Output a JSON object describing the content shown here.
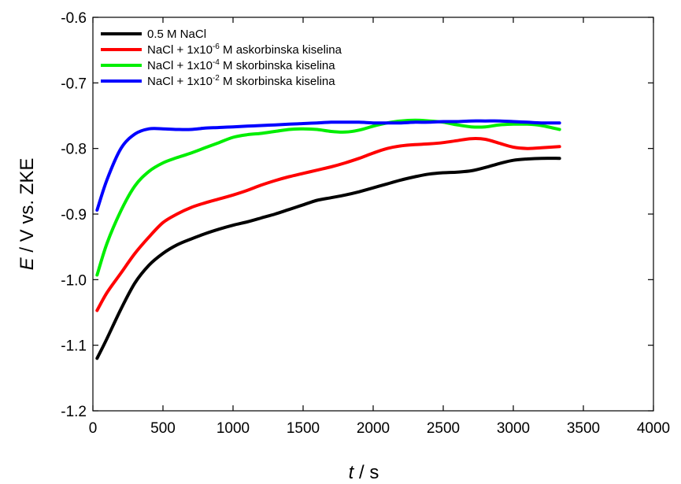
{
  "chart_data": {
    "type": "line",
    "title": "",
    "xlabel": {
      "var": "t",
      "unit": " / s"
    },
    "ylabel": {
      "var": "E",
      "unit": " / V vs. ZKE"
    },
    "xlim": [
      0,
      4000
    ],
    "ylim": [
      -1.2,
      -0.6
    ],
    "xticks": [
      0,
      500,
      1000,
      1500,
      2000,
      2500,
      3000,
      3500,
      4000
    ],
    "yticks": [
      -1.2,
      -1.1,
      -1.0,
      -0.9,
      -0.8,
      -0.7,
      -0.6
    ],
    "xtick_labels": [
      "0",
      "500",
      "1000",
      "1500",
      "2000",
      "2500",
      "3000",
      "3500",
      "4000"
    ],
    "ytick_labels": [
      "-1.2",
      "-1.1",
      "-1.0",
      "-0.9",
      "-0.8",
      "-0.7",
      "-0.6"
    ],
    "grid": false,
    "legend_position": "top-left",
    "series": [
      {
        "name": "0.5 M NaCl",
        "label": {
          "pre": "0.5 M NaCl",
          "sup": "",
          "post": ""
        },
        "color": "#000000",
        "x": [
          30,
          100,
          200,
          300,
          400,
          500,
          600,
          700,
          800,
          900,
          1000,
          1100,
          1200,
          1300,
          1400,
          1500,
          1600,
          1700,
          1800,
          1900,
          2000,
          2100,
          2200,
          2300,
          2400,
          2500,
          2600,
          2700,
          2800,
          2900,
          3000,
          3100,
          3200,
          3330
        ],
        "y": [
          -1.12,
          -1.09,
          -1.045,
          -1.005,
          -0.978,
          -0.96,
          -0.947,
          -0.938,
          -0.93,
          -0.923,
          -0.917,
          -0.912,
          -0.906,
          -0.9,
          -0.893,
          -0.886,
          -0.879,
          -0.875,
          -0.871,
          -0.866,
          -0.86,
          -0.854,
          -0.848,
          -0.843,
          -0.839,
          -0.837,
          -0.836,
          -0.834,
          -0.829,
          -0.823,
          -0.818,
          -0.816,
          -0.815,
          -0.815
        ]
      },
      {
        "name": "NaCl + 1x10-6 M askorbinska kiselina",
        "label": {
          "pre": "NaCl + 1x10",
          "sup": "-6",
          "post": " M askorbinska kiselina"
        },
        "color": "#ff0000",
        "x": [
          30,
          100,
          200,
          300,
          400,
          500,
          600,
          700,
          800,
          900,
          1000,
          1100,
          1200,
          1300,
          1400,
          1500,
          1600,
          1700,
          1800,
          1900,
          2000,
          2100,
          2200,
          2300,
          2400,
          2500,
          2600,
          2700,
          2800,
          2900,
          3000,
          3100,
          3200,
          3330
        ],
        "y": [
          -1.047,
          -1.02,
          -0.99,
          -0.96,
          -0.935,
          -0.913,
          -0.9,
          -0.89,
          -0.883,
          -0.877,
          -0.871,
          -0.864,
          -0.856,
          -0.849,
          -0.843,
          -0.838,
          -0.833,
          -0.828,
          -0.822,
          -0.815,
          -0.807,
          -0.8,
          -0.796,
          -0.794,
          -0.793,
          -0.791,
          -0.788,
          -0.785,
          -0.786,
          -0.792,
          -0.798,
          -0.8,
          -0.799,
          -0.797
        ]
      },
      {
        "name": "NaCl + 1x10-4 M skorbinska kiselina",
        "label": {
          "pre": "NaCl + 1x10",
          "sup": "-4",
          "post": " M skorbinska kiselina"
        },
        "color": "#00ee00",
        "x": [
          30,
          100,
          200,
          300,
          400,
          500,
          600,
          700,
          800,
          900,
          1000,
          1100,
          1200,
          1300,
          1400,
          1500,
          1600,
          1700,
          1800,
          1900,
          2000,
          2100,
          2200,
          2300,
          2400,
          2500,
          2600,
          2700,
          2800,
          2900,
          3000,
          3100,
          3200,
          3330
        ],
        "y": [
          -0.993,
          -0.945,
          -0.895,
          -0.857,
          -0.835,
          -0.822,
          -0.814,
          -0.807,
          -0.799,
          -0.791,
          -0.783,
          -0.779,
          -0.777,
          -0.774,
          -0.771,
          -0.77,
          -0.771,
          -0.774,
          -0.775,
          -0.772,
          -0.766,
          -0.761,
          -0.758,
          -0.757,
          -0.758,
          -0.76,
          -0.764,
          -0.767,
          -0.767,
          -0.764,
          -0.763,
          -0.763,
          -0.765,
          -0.771
        ]
      },
      {
        "name": "NaCl + 1x10-2 M skorbinska kiselina",
        "label": {
          "pre": "NaCl + 1x10",
          "sup": "-2",
          "post": " M skorbinska kiselina"
        },
        "color": "#0000ff",
        "x": [
          30,
          100,
          200,
          300,
          400,
          500,
          600,
          700,
          800,
          900,
          1000,
          1100,
          1200,
          1300,
          1400,
          1500,
          1600,
          1700,
          1800,
          1900,
          2000,
          2100,
          2200,
          2300,
          2400,
          2500,
          2600,
          2700,
          2800,
          2900,
          3000,
          3100,
          3200,
          3330
        ],
        "y": [
          -0.894,
          -0.848,
          -0.8,
          -0.778,
          -0.77,
          -0.77,
          -0.771,
          -0.771,
          -0.769,
          -0.768,
          -0.767,
          -0.766,
          -0.765,
          -0.764,
          -0.763,
          -0.762,
          -0.761,
          -0.76,
          -0.76,
          -0.76,
          -0.761,
          -0.761,
          -0.761,
          -0.76,
          -0.76,
          -0.759,
          -0.759,
          -0.758,
          -0.758,
          -0.758,
          -0.759,
          -0.76,
          -0.761,
          -0.761
        ]
      }
    ]
  }
}
